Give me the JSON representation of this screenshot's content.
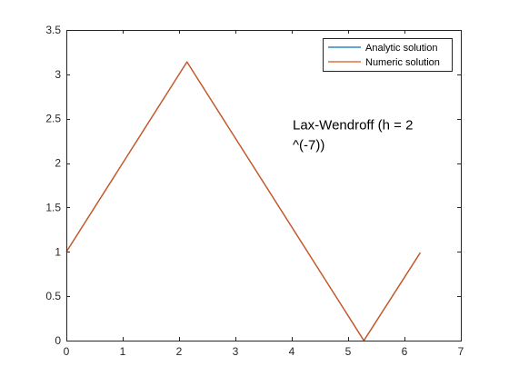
{
  "chart_data": {
    "type": "line",
    "title": "",
    "xlabel": "",
    "ylabel": "",
    "xlim": [
      0,
      7
    ],
    "ylim": [
      0,
      3.5
    ],
    "x_ticks": [
      0,
      1,
      2,
      3,
      4,
      5,
      6,
      7
    ],
    "y_ticks": [
      0,
      0.5,
      1,
      1.5,
      2,
      2.5,
      3,
      3.5
    ],
    "x_tick_labels": [
      "0",
      "1",
      "2",
      "3",
      "4",
      "5",
      "6",
      "7"
    ],
    "y_tick_labels": [
      "0",
      "0.5",
      "1",
      "1.5",
      "2",
      "2.5",
      "3",
      "3.5"
    ],
    "grid": false,
    "legend_position": "top-right",
    "series": [
      {
        "name": "Analytic solution",
        "color": "#0072bd",
        "x": [
          0,
          2.14,
          5.28,
          6.28
        ],
        "y": [
          1.0,
          3.14,
          0.0,
          0.99
        ]
      },
      {
        "name": "Numeric solution",
        "color": "#d95319",
        "x": [
          0,
          2.14,
          5.28,
          6.28
        ],
        "y": [
          1.0,
          3.14,
          0.0,
          0.99
        ]
      }
    ],
    "annotation": {
      "lines": [
        "Lax-Wendroff (h = 2",
        "^(-7))"
      ],
      "x": 4.0,
      "y": 2.38
    }
  }
}
